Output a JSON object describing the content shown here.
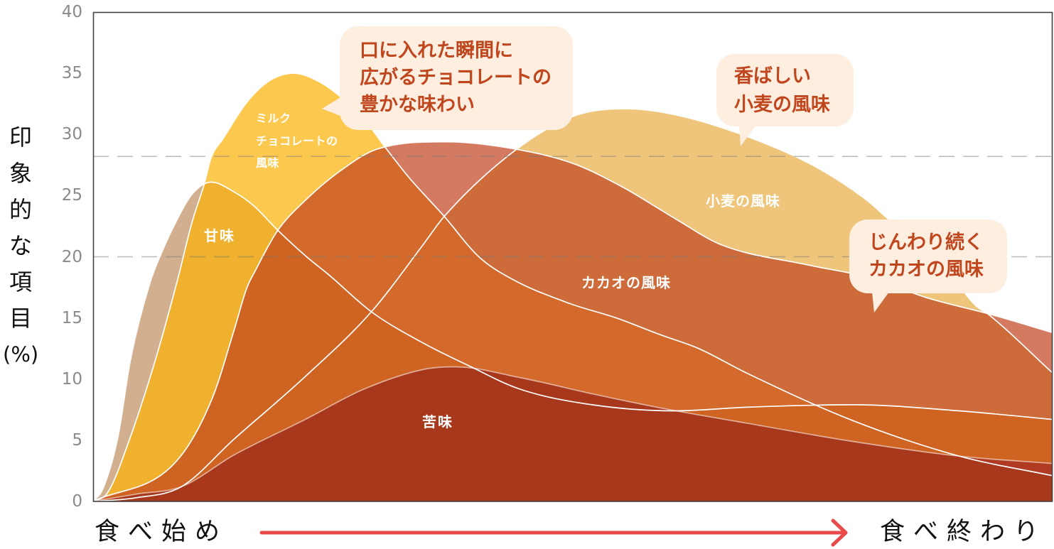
{
  "chart_data": {
    "type": "area",
    "title": "",
    "xlabel": "食べ始め → 食べ終わり",
    "ylabel": "印象的な項目 (%)",
    "xlim": [
      0,
      100
    ],
    "ylim": [
      0,
      40
    ],
    "grid": false,
    "legend": "none (labels placed inside areas)",
    "x_range_label": {
      "start": "食べ始め",
      "end": "食べ終わり"
    },
    "y_ticks": [
      0,
      5,
      10,
      15,
      20,
      25,
      30,
      35,
      40
    ],
    "reference_lines": [
      20,
      28.2
    ],
    "series": [
      {
        "id": "sweet",
        "name": "甘味",
        "label_lines": [
          "甘味"
        ],
        "color": "#d1af8f",
        "points": [
          [
            0,
            0
          ],
          [
            1.0,
            1.0
          ],
          [
            2.6,
            5.3
          ],
          [
            3.9,
            11.6
          ],
          [
            5.9,
            17.8
          ],
          [
            7.4,
            20.8
          ],
          [
            8.6,
            22.8
          ],
          [
            10.3,
            25.1
          ],
          [
            12.3,
            26.1
          ],
          [
            14.7,
            25.3
          ],
          [
            16.7,
            24.2
          ],
          [
            19.2,
            22.2
          ],
          [
            22.1,
            20.1
          ],
          [
            24.6,
            18.5
          ],
          [
            29.0,
            15.5
          ],
          [
            34.5,
            12.9
          ],
          [
            39.4,
            11.0
          ],
          [
            44.4,
            9.2
          ],
          [
            52.0,
            7.9
          ],
          [
            60.7,
            7.4
          ],
          [
            68.1,
            7.7
          ],
          [
            79.2,
            7.9
          ],
          [
            90.3,
            7.4
          ],
          [
            100,
            6.7
          ]
        ]
      },
      {
        "id": "milk",
        "name": "ミルクチョコレートの風味",
        "label_lines": [
          "ミルク",
          "チョコレートの",
          "風味"
        ],
        "color": "#fcc84e",
        "points": [
          [
            0,
            0
          ],
          [
            1.5,
            0.7
          ],
          [
            3.9,
            5.3
          ],
          [
            6.5,
            11.6
          ],
          [
            8.7,
            17.8
          ],
          [
            10.3,
            22.8
          ],
          [
            11.6,
            26.0
          ],
          [
            12.3,
            28.1
          ],
          [
            13.5,
            29.6
          ],
          [
            16.0,
            32.6
          ],
          [
            18.4,
            34.4
          ],
          [
            20.9,
            35.0
          ],
          [
            23.8,
            34.2
          ],
          [
            26.2,
            32.8
          ],
          [
            28.4,
            31.1
          ],
          [
            30.3,
            29.1
          ],
          [
            32.9,
            26.5
          ],
          [
            36.6,
            23.3
          ],
          [
            40.2,
            20.0
          ],
          [
            43.6,
            18.2
          ],
          [
            49.6,
            16.2
          ],
          [
            54.5,
            15.0
          ],
          [
            59.2,
            13.6
          ],
          [
            63.1,
            12.5
          ],
          [
            68.1,
            10.5
          ],
          [
            79.2,
            6.6
          ],
          [
            90.3,
            3.7
          ],
          [
            100,
            2.1
          ]
        ]
      },
      {
        "id": "cacao",
        "name": "カカオの風味",
        "label_lines": [
          "カカオの風味"
        ],
        "color": "#d47a60",
        "points": [
          [
            0,
            0
          ],
          [
            8.7,
            3.3
          ],
          [
            12.4,
            8.4
          ],
          [
            14.7,
            14.0
          ],
          [
            16.0,
            17.4
          ],
          [
            17.0,
            19.0
          ],
          [
            19.2,
            22.1
          ],
          [
            22.1,
            24.6
          ],
          [
            25.9,
            27.1
          ],
          [
            29.6,
            28.8
          ],
          [
            36.7,
            29.4
          ],
          [
            44.0,
            28.8
          ],
          [
            50.1,
            27.6
          ],
          [
            55.4,
            25.6
          ],
          [
            60.7,
            23.1
          ],
          [
            65.4,
            21.0
          ],
          [
            74.7,
            19.3
          ],
          [
            80.9,
            18.3
          ],
          [
            87.1,
            16.6
          ],
          [
            93.5,
            15.3
          ],
          [
            100,
            13.8
          ]
        ]
      },
      {
        "id": "wheat",
        "name": "小麦の風味",
        "label_lines": [
          "小麦の風味"
        ],
        "color": "#eec57a",
        "points": [
          [
            0,
            0
          ],
          [
            4.5,
            0.3
          ],
          [
            9.2,
            1.2
          ],
          [
            14.7,
            5.1
          ],
          [
            22.1,
            10.2
          ],
          [
            29.0,
            15.5
          ],
          [
            34.5,
            21.1
          ],
          [
            36.6,
            23.3
          ],
          [
            44.0,
            28.7
          ],
          [
            50.1,
            31.5
          ],
          [
            55.4,
            32.1
          ],
          [
            60.7,
            31.6
          ],
          [
            68.6,
            29.7
          ],
          [
            75.2,
            27.4
          ],
          [
            80.5,
            24.7
          ],
          [
            83.6,
            22.6
          ],
          [
            87.6,
            20.3
          ],
          [
            92.0,
            16.0
          ],
          [
            93.3,
            15.3
          ],
          [
            100,
            10.5
          ]
        ]
      },
      {
        "id": "bitter",
        "name": "苦味",
        "label_lines": [
          "苦味"
        ],
        "color": "#b03b22",
        "points": [
          [
            0,
            0
          ],
          [
            4.5,
            0.6
          ],
          [
            9.2,
            1.2
          ],
          [
            14.7,
            3.8
          ],
          [
            22.1,
            6.7
          ],
          [
            28.3,
            9.2
          ],
          [
            34.5,
            10.8
          ],
          [
            37.7,
            11.0
          ],
          [
            44.6,
            10.1
          ],
          [
            52.0,
            8.8
          ],
          [
            59.4,
            7.6
          ],
          [
            68.1,
            6.4
          ],
          [
            79.2,
            4.9
          ],
          [
            90.3,
            3.7
          ],
          [
            100,
            3.1
          ]
        ]
      }
    ],
    "overlap_colors": {
      "milk_sweet": "#f0b22e",
      "cacao_wheat": "#cd6b3a",
      "cacao_milk": "#d36a2b",
      "cacao_sweet": "#cf6322",
      "bitter_milk": "#a8381c"
    },
    "annotations": [
      {
        "target": "milk",
        "lines": [
          "口に入れた瞬間に",
          "広がるチョコレートの",
          "豊かな味わい"
        ]
      },
      {
        "target": "wheat",
        "lines": [
          "香ばしい",
          "小麦の風味"
        ]
      },
      {
        "target": "cacao",
        "lines": [
          "じんわり続く",
          "カカオの風味"
        ]
      }
    ]
  },
  "axis": {
    "y_label_chars": [
      "印",
      "象",
      "的",
      "な",
      "項",
      "目"
    ],
    "y_unit": "(%)",
    "arrow_color": "#e94b4b",
    "tick_color": "#8a8a8a",
    "frame_color": "#444444",
    "reference_line_color": "rgba(120,120,120,0.5)"
  },
  "callout_style": {
    "bg": "#fdeee0",
    "text": "#c0461e"
  }
}
